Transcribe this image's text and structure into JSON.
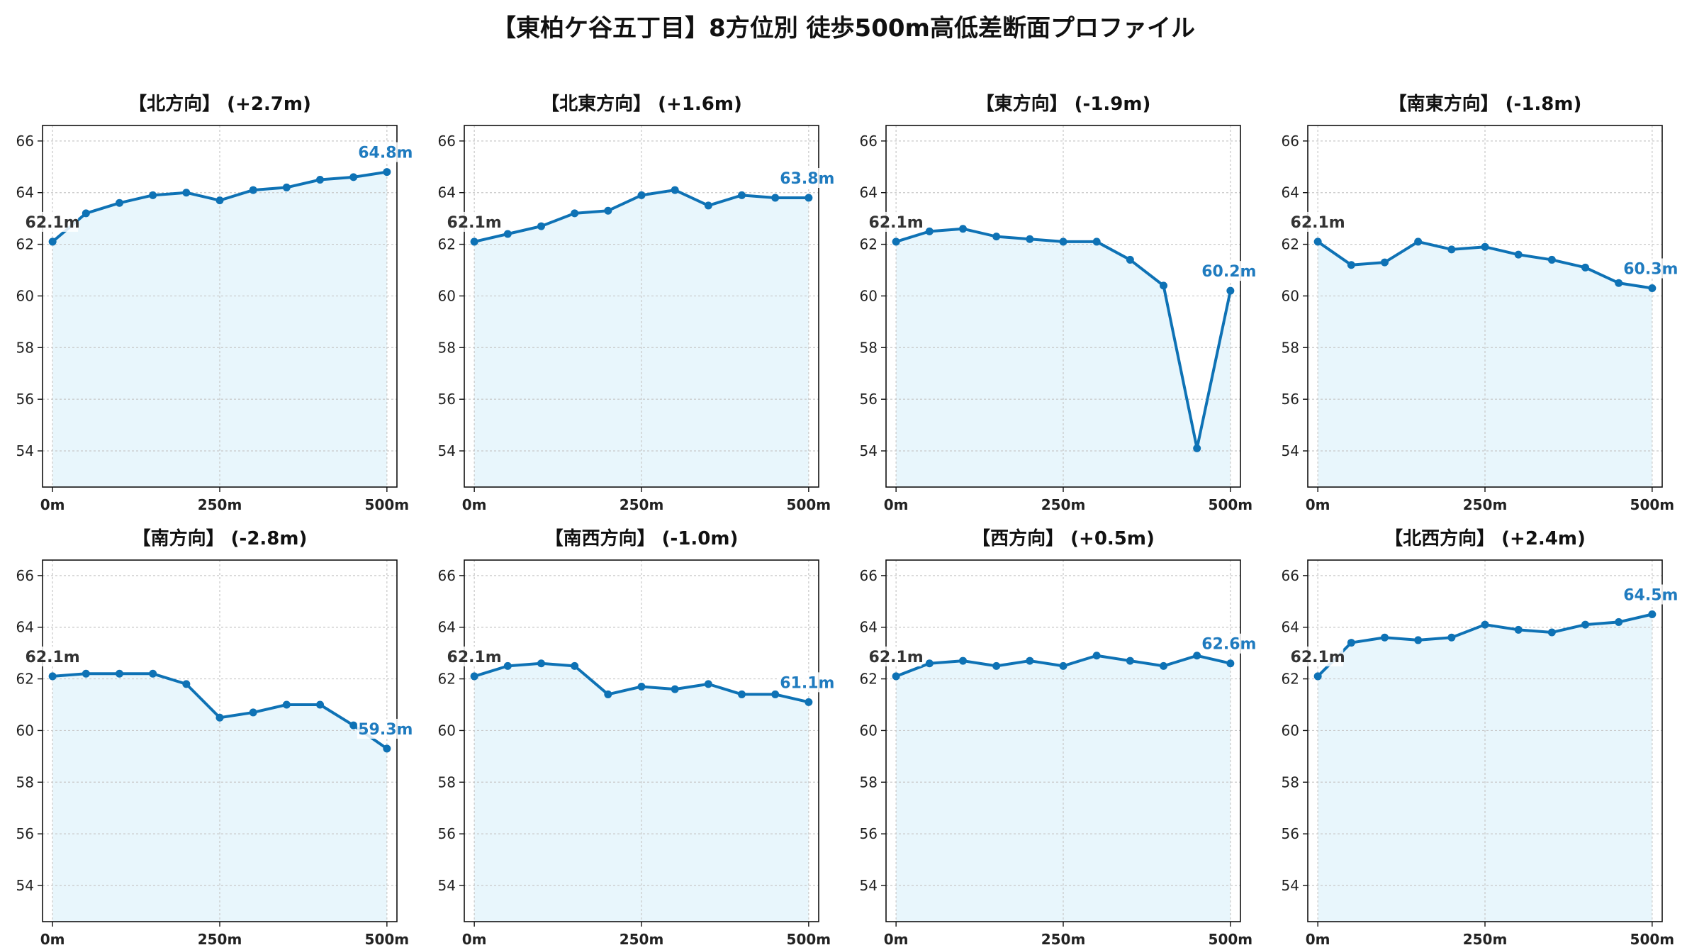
{
  "title": "【東柏ケ谷五丁目】8方位別 徒歩500m高低差断面プロファイル",
  "colors": {
    "line": "#0e72b5",
    "fill": "#e8f6fc",
    "grid": "#c8c8c8",
    "end_label": "#1f7bbf",
    "start_label": "#333333"
  },
  "chart_data": [
    {
      "type": "area",
      "title": "【北方向】 (+2.7m)",
      "x": [
        0,
        50,
        100,
        150,
        200,
        250,
        300,
        350,
        400,
        450,
        500
      ],
      "y": [
        62.1,
        63.2,
        63.6,
        63.9,
        64.0,
        63.7,
        64.1,
        64.2,
        64.5,
        64.6,
        64.8
      ],
      "start_label": "62.1m",
      "end_label": "64.8m",
      "xticks": [
        "0m",
        "250m",
        "500m"
      ],
      "yticks": [
        54,
        56,
        58,
        60,
        62,
        64,
        66
      ],
      "xlim": [
        -15,
        515
      ],
      "ylim": [
        52.6,
        66.6
      ],
      "grid": true
    },
    {
      "type": "area",
      "title": "【北東方向】 (+1.6m)",
      "x": [
        0,
        50,
        100,
        150,
        200,
        250,
        300,
        350,
        400,
        450,
        500
      ],
      "y": [
        62.1,
        62.4,
        62.7,
        63.2,
        63.3,
        63.9,
        64.1,
        63.5,
        63.9,
        63.8,
        63.8
      ],
      "start_label": "62.1m",
      "end_label": "63.8m",
      "xticks": [
        "0m",
        "250m",
        "500m"
      ],
      "yticks": [
        54,
        56,
        58,
        60,
        62,
        64,
        66
      ],
      "xlim": [
        -15,
        515
      ],
      "ylim": [
        52.6,
        66.6
      ],
      "grid": true
    },
    {
      "type": "area",
      "title": "【東方向】 (-1.9m)",
      "x": [
        0,
        50,
        100,
        150,
        200,
        250,
        300,
        350,
        400,
        450,
        500
      ],
      "y": [
        62.1,
        62.5,
        62.6,
        62.3,
        62.2,
        62.1,
        62.1,
        61.4,
        60.4,
        54.1,
        60.2
      ],
      "start_label": "62.1m",
      "end_label": "60.2m",
      "xticks": [
        "0m",
        "250m",
        "500m"
      ],
      "yticks": [
        54,
        56,
        58,
        60,
        62,
        64,
        66
      ],
      "xlim": [
        -15,
        515
      ],
      "ylim": [
        52.6,
        66.6
      ],
      "grid": true
    },
    {
      "type": "area",
      "title": "【南東方向】 (-1.8m)",
      "x": [
        0,
        50,
        100,
        150,
        200,
        250,
        300,
        350,
        400,
        450,
        500
      ],
      "y": [
        62.1,
        61.2,
        61.3,
        62.1,
        61.8,
        61.9,
        61.6,
        61.4,
        61.1,
        60.5,
        60.3
      ],
      "start_label": "62.1m",
      "end_label": "60.3m",
      "xticks": [
        "0m",
        "250m",
        "500m"
      ],
      "yticks": [
        54,
        56,
        58,
        60,
        62,
        64,
        66
      ],
      "xlim": [
        -15,
        515
      ],
      "ylim": [
        52.6,
        66.6
      ],
      "grid": true
    },
    {
      "type": "area",
      "title": "【南方向】 (-2.8m)",
      "x": [
        0,
        50,
        100,
        150,
        200,
        250,
        300,
        350,
        400,
        450,
        500
      ],
      "y": [
        62.1,
        62.2,
        62.2,
        62.2,
        61.8,
        60.5,
        60.7,
        61.0,
        61.0,
        60.2,
        59.3
      ],
      "start_label": "62.1m",
      "end_label": "59.3m",
      "xticks": [
        "0m",
        "250m",
        "500m"
      ],
      "yticks": [
        54,
        56,
        58,
        60,
        62,
        64,
        66
      ],
      "xlim": [
        -15,
        515
      ],
      "ylim": [
        52.6,
        66.6
      ],
      "grid": true
    },
    {
      "type": "area",
      "title": "【南西方向】 (-1.0m)",
      "x": [
        0,
        50,
        100,
        150,
        200,
        250,
        300,
        350,
        400,
        450,
        500
      ],
      "y": [
        62.1,
        62.5,
        62.6,
        62.5,
        61.4,
        61.7,
        61.6,
        61.8,
        61.4,
        61.4,
        61.1
      ],
      "start_label": "62.1m",
      "end_label": "61.1m",
      "xticks": [
        "0m",
        "250m",
        "500m"
      ],
      "yticks": [
        54,
        56,
        58,
        60,
        62,
        64,
        66
      ],
      "xlim": [
        -15,
        515
      ],
      "ylim": [
        52.6,
        66.6
      ],
      "grid": true
    },
    {
      "type": "area",
      "title": "【西方向】 (+0.5m)",
      "x": [
        0,
        50,
        100,
        150,
        200,
        250,
        300,
        350,
        400,
        450,
        500
      ],
      "y": [
        62.1,
        62.6,
        62.7,
        62.5,
        62.7,
        62.5,
        62.9,
        62.7,
        62.5,
        62.9,
        62.6
      ],
      "start_label": "62.1m",
      "end_label": "62.6m",
      "xticks": [
        "0m",
        "250m",
        "500m"
      ],
      "yticks": [
        54,
        56,
        58,
        60,
        62,
        64,
        66
      ],
      "xlim": [
        -15,
        515
      ],
      "ylim": [
        52.6,
        66.6
      ],
      "grid": true
    },
    {
      "type": "area",
      "title": "【北西方向】 (+2.4m)",
      "x": [
        0,
        50,
        100,
        150,
        200,
        250,
        300,
        350,
        400,
        450,
        500
      ],
      "y": [
        62.1,
        63.4,
        63.6,
        63.5,
        63.6,
        64.1,
        63.9,
        63.8,
        64.1,
        64.2,
        64.5
      ],
      "start_label": "62.1m",
      "end_label": "64.5m",
      "xticks": [
        "0m",
        "250m",
        "500m"
      ],
      "yticks": [
        54,
        56,
        58,
        60,
        62,
        64,
        66
      ],
      "xlim": [
        -15,
        515
      ],
      "ylim": [
        52.6,
        66.6
      ],
      "grid": true
    }
  ]
}
